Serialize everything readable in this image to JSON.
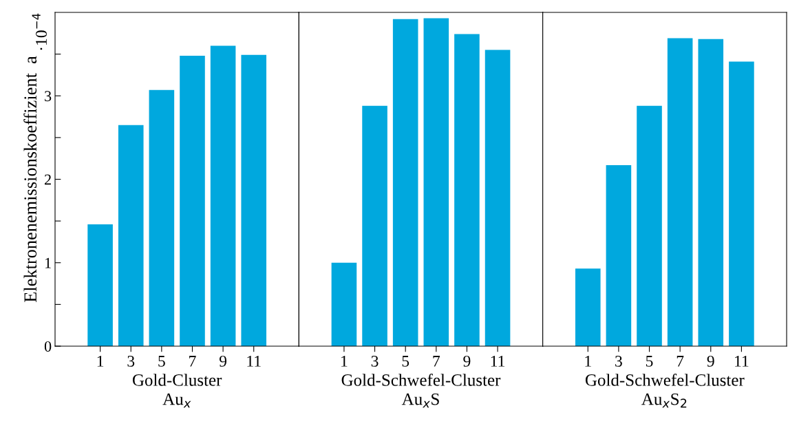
{
  "chart_data": [
    {
      "type": "bar",
      "ylabel": "Elektronenemissionskoeffizient  a",
      "annotations": [
        "·10$^{−4}$"
      ],
      "xlabel": "Gold-Cluster\nAu$_{x}$",
      "categories": [
        "1",
        "3",
        "5",
        "7",
        "9",
        "11"
      ],
      "values": [
        1.46,
        2.65,
        3.07,
        3.48,
        3.6,
        3.49
      ],
      "color": "#00a8de",
      "ylim": [
        0,
        4
      ],
      "yticks": [
        0,
        {
          "value": 0.5,
          "label": null
        },
        1,
        {
          "value": 1.5,
          "label": null
        },
        2,
        {
          "value": 2.5,
          "label": null
        },
        3,
        {
          "value": 3.5,
          "label": null
        }
      ],
      "grid": false,
      "legend": false
    },
    {
      "type": "bar",
      "xlabel": "Gold-Schwefel-Cluster\nAu$_{x}$S",
      "categories": [
        "1",
        "3",
        "5",
        "7",
        "9",
        "11"
      ],
      "values": [
        1.0,
        2.88,
        3.92,
        3.93,
        3.74,
        3.55
      ],
      "color": "#00a8de",
      "ylim": [
        0,
        4
      ],
      "tick_labels": "x",
      "grid": false,
      "legend": false
    },
    {
      "type": "bar",
      "xlabel": "Gold-Schwefel-Cluster\nAu$_{x}$S$_{2}$",
      "categories": [
        "1",
        "3",
        "5",
        "7",
        "9",
        "11"
      ],
      "values": [
        0.93,
        2.17,
        2.88,
        3.69,
        3.68,
        3.41
      ],
      "color": "#00a8de",
      "ylim": [
        0,
        4
      ],
      "tick_labels": "x",
      "grid": false,
      "legend": false
    }
  ]
}
